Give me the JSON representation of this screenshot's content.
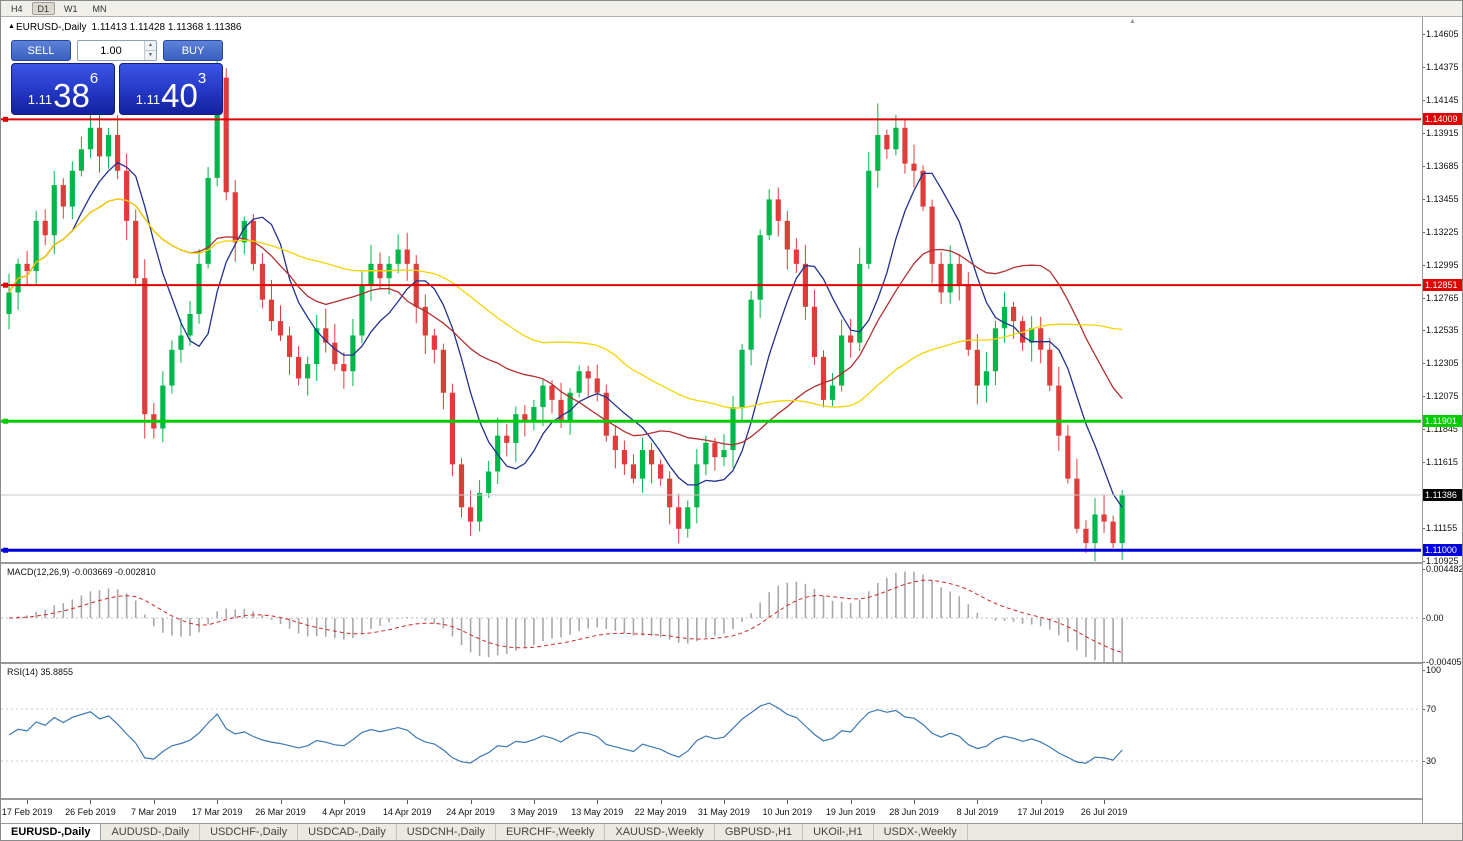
{
  "toolbar": {
    "timeframes": [
      {
        "label": "H4",
        "active": false
      },
      {
        "label": "D1",
        "active": true
      },
      {
        "label": "W1",
        "active": false
      },
      {
        "label": "MN",
        "active": false
      }
    ]
  },
  "icons": {
    "collapse": "▲",
    "spinner_up": "▲",
    "spinner_down": "▼",
    "shift_marker": "▲"
  },
  "chart_header": {
    "title": "EURUSD-,Daily",
    "ohlc": "1.11413 1.11428 1.11368 1.11386"
  },
  "trade_panel": {
    "sell_label": "SELL",
    "buy_label": "BUY",
    "volume": "1.00",
    "sell_price": {
      "prefix": "1.11",
      "big": "38",
      "sup": "6"
    },
    "buy_price": {
      "prefix": "1.11",
      "big": "40",
      "sup": "3"
    }
  },
  "colors": {
    "candle_up": "#00b84a",
    "candle_down": "#e03c3c",
    "bid_line": "#c8c8c8",
    "macd_bar": "#a8a8a8",
    "macd_signal": "#cc2a2a",
    "rsi_line": "#3c78b4",
    "level_gray": "#c0c0c0"
  },
  "price_axis": {
    "ticks": [
      "1.14605",
      "1.14375",
      "1.14145",
      "1.13915",
      "1.13685",
      "1.13455",
      "1.13225",
      "1.12995",
      "1.12765",
      "1.12535",
      "1.12305",
      "1.12075",
      "1.11845",
      "1.11615",
      "1.11155",
      "1.10925"
    ]
  },
  "levels": [
    {
      "text": "1.14009",
      "num": 1.14009,
      "line_color": "#e00000",
      "width": 2,
      "label_bg": "#e00000"
    },
    {
      "text": "1.12851",
      "num": 1.12851,
      "line_color": "#e00000",
      "width": 2,
      "label_bg": "#e00000"
    },
    {
      "text": "1.11901",
      "num": 1.11901,
      "line_color": "#00cc00",
      "width": 3,
      "label_bg": "#00cc00"
    },
    {
      "text": "1.11386",
      "num": 1.11386,
      "line_color": "#c8c8c8",
      "width": 1,
      "label_bg": "#000000"
    },
    {
      "text": "1.11000",
      "num": 1.11,
      "line_color": "#0000e0",
      "width": 3,
      "label_bg": "#0000e0"
    }
  ],
  "macd_panel": {
    "label": "MACD(12,26,9) -0.003669 -0.002810",
    "axis": [
      {
        "text": "0.004482",
        "num": 0.004482
      },
      {
        "text": "0.00",
        "num": 0
      },
      {
        "text": "-0.004057",
        "num": -0.004057
      }
    ]
  },
  "rsi_panel": {
    "label": "RSI(14) 35.8855",
    "axis": [
      {
        "text": "100",
        "num": 100
      },
      {
        "text": "70",
        "num": 70
      },
      {
        "text": "30",
        "num": 30
      }
    ],
    "guide_levels": [
      70,
      30
    ]
  },
  "date_axis": {
    "labels": [
      "17 Feb 2019",
      "26 Feb 2019",
      "7 Mar 2019",
      "17 Mar 2019",
      "26 Mar 2019",
      "4 Apr 2019",
      "14 Apr 2019",
      "24 Apr 2019",
      "3 May 2019",
      "13 May 2019",
      "22 May 2019",
      "31 May 2019",
      "10 Jun 2019",
      "19 Jun 2019",
      "28 Jun 2019",
      "8 Jul 2019",
      "17 Jul 2019",
      "26 Jul 2019"
    ],
    "first_index": 2,
    "step": 7
  },
  "tabs": [
    {
      "label": "EURUSD-,Daily",
      "active": true
    },
    {
      "label": "AUDUSD-,Daily",
      "active": false
    },
    {
      "label": "USDCHF-,Daily",
      "active": false
    },
    {
      "label": "USDCAD-,Daily",
      "active": false
    },
    {
      "label": "USDCNH-,Daily",
      "active": false
    },
    {
      "label": "EURCHF-,Weekly",
      "active": false
    },
    {
      "label": "XAUUSD-,Weekly",
      "active": false
    },
    {
      "label": "GBPUSD-,H1",
      "active": false
    },
    {
      "label": "UKOil-,H1",
      "active": false
    },
    {
      "label": "USDX-,Weekly",
      "active": false
    }
  ],
  "chart_data": {
    "type": "candlestick",
    "symbol": "EURUSD",
    "timeframe": "Daily",
    "ohlc_current": {
      "open": 1.11413,
      "high": 1.11428,
      "low": 1.11368,
      "close": 1.11386
    },
    "y_range": [
      1.10925,
      1.14605
    ],
    "first_open": 1.1265,
    "closes": [
      1.128,
      1.13,
      1.1295,
      1.133,
      1.132,
      1.1355,
      1.134,
      1.1365,
      1.138,
      1.1395,
      1.1375,
      1.139,
      1.1365,
      1.133,
      1.129,
      1.1195,
      1.1185,
      1.1215,
      1.124,
      1.125,
      1.1265,
      1.13,
      1.136,
      1.143,
      1.135,
      1.1315,
      1.133,
      1.13,
      1.1275,
      1.126,
      1.125,
      1.1235,
      1.122,
      1.123,
      1.1255,
      1.1245,
      1.123,
      1.1225,
      1.125,
      1.1285,
      1.13,
      1.129,
      1.13,
      1.131,
      1.13,
      1.127,
      1.125,
      1.124,
      1.121,
      1.116,
      1.113,
      1.112,
      1.114,
      1.1155,
      1.118,
      1.1175,
      1.1195,
      1.119,
      1.12,
      1.1215,
      1.1205,
      1.119,
      1.121,
      1.1225,
      1.122,
      1.121,
      1.118,
      1.117,
      1.116,
      1.115,
      1.117,
      1.116,
      1.115,
      1.113,
      1.1115,
      1.113,
      1.116,
      1.1175,
      1.1165,
      1.117,
      1.12,
      1.124,
      1.1275,
      1.132,
      1.1345,
      1.133,
      1.131,
      1.13,
      1.127,
      1.1235,
      1.1205,
      1.1215,
      1.125,
      1.1245,
      1.13,
      1.1365,
      1.139,
      1.138,
      1.1395,
      1.137,
      1.1365,
      1.134,
      1.13,
      1.128,
      1.13,
      1.1285,
      1.124,
      1.1215,
      1.1225,
      1.1255,
      1.127,
      1.126,
      1.1245,
      1.1255,
      1.124,
      1.1215,
      1.118,
      1.115,
      1.1115,
      1.1105,
      1.1125,
      1.112,
      1.1105,
      1.1139
    ],
    "spikes": {
      "9": {
        "h": 1.1408
      },
      "15": {
        "l": 1.1178
      },
      "23": {
        "h": 1.1448
      },
      "51": {
        "l": 1.111
      },
      "74": {
        "l": 1.1107
      },
      "96": {
        "h": 1.1412
      },
      "98": {
        "h": 1.1404
      },
      "119": {
        "l": 1.1101
      },
      "122": {
        "l": 1.1102
      }
    },
    "overlays": [
      {
        "name": "ma-fast",
        "period": 8,
        "color": "#21318f"
      },
      {
        "name": "ma-mid",
        "period": 21,
        "color": "#b23030"
      },
      {
        "name": "ma-slow",
        "period": 45,
        "color": "#f5d400"
      }
    ],
    "indicators": {
      "macd": {
        "fast": 12,
        "slow": 26,
        "signal": 9
      },
      "rsi": {
        "period": 14
      }
    }
  }
}
